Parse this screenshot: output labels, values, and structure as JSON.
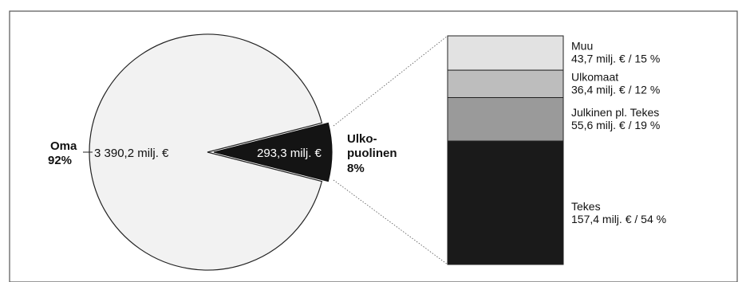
{
  "chart_data": [
    {
      "type": "pie",
      "slices": [
        {
          "label_line1": "Oma",
          "percent_label": "92%",
          "value_label": "3 390,2 milj. €",
          "value": 3390.2,
          "color": "#f2f2f2"
        },
        {
          "label_line1": "Ulko-",
          "label_line2": "puolinen",
          "percent_label": "8%",
          "value_label": "293,3 milj. €",
          "value": 293.3,
          "color": "#141414"
        }
      ]
    },
    {
      "type": "bar",
      "stacked": true,
      "segments": [
        {
          "name": "Tekes",
          "value_text": "157,4 milj. € /  54 %",
          "value": 157.4,
          "percent": 54,
          "color": "#1a1a1a"
        },
        {
          "name": "Julkinen pl. Tekes",
          "value_text": "55,6 milj. € /  19 %",
          "value": 55.6,
          "percent": 19,
          "color": "#9a9a9a"
        },
        {
          "name": "Ulkomaat",
          "value_text": "36,4 milj. € /  12 %",
          "value": 36.4,
          "percent": 12,
          "color": "#bdbdbd"
        },
        {
          "name": "Muu",
          "value_text": "43,7 milj. € /  15 %",
          "value": 43.7,
          "percent": 15,
          "color": "#e2e2e2"
        }
      ]
    }
  ]
}
